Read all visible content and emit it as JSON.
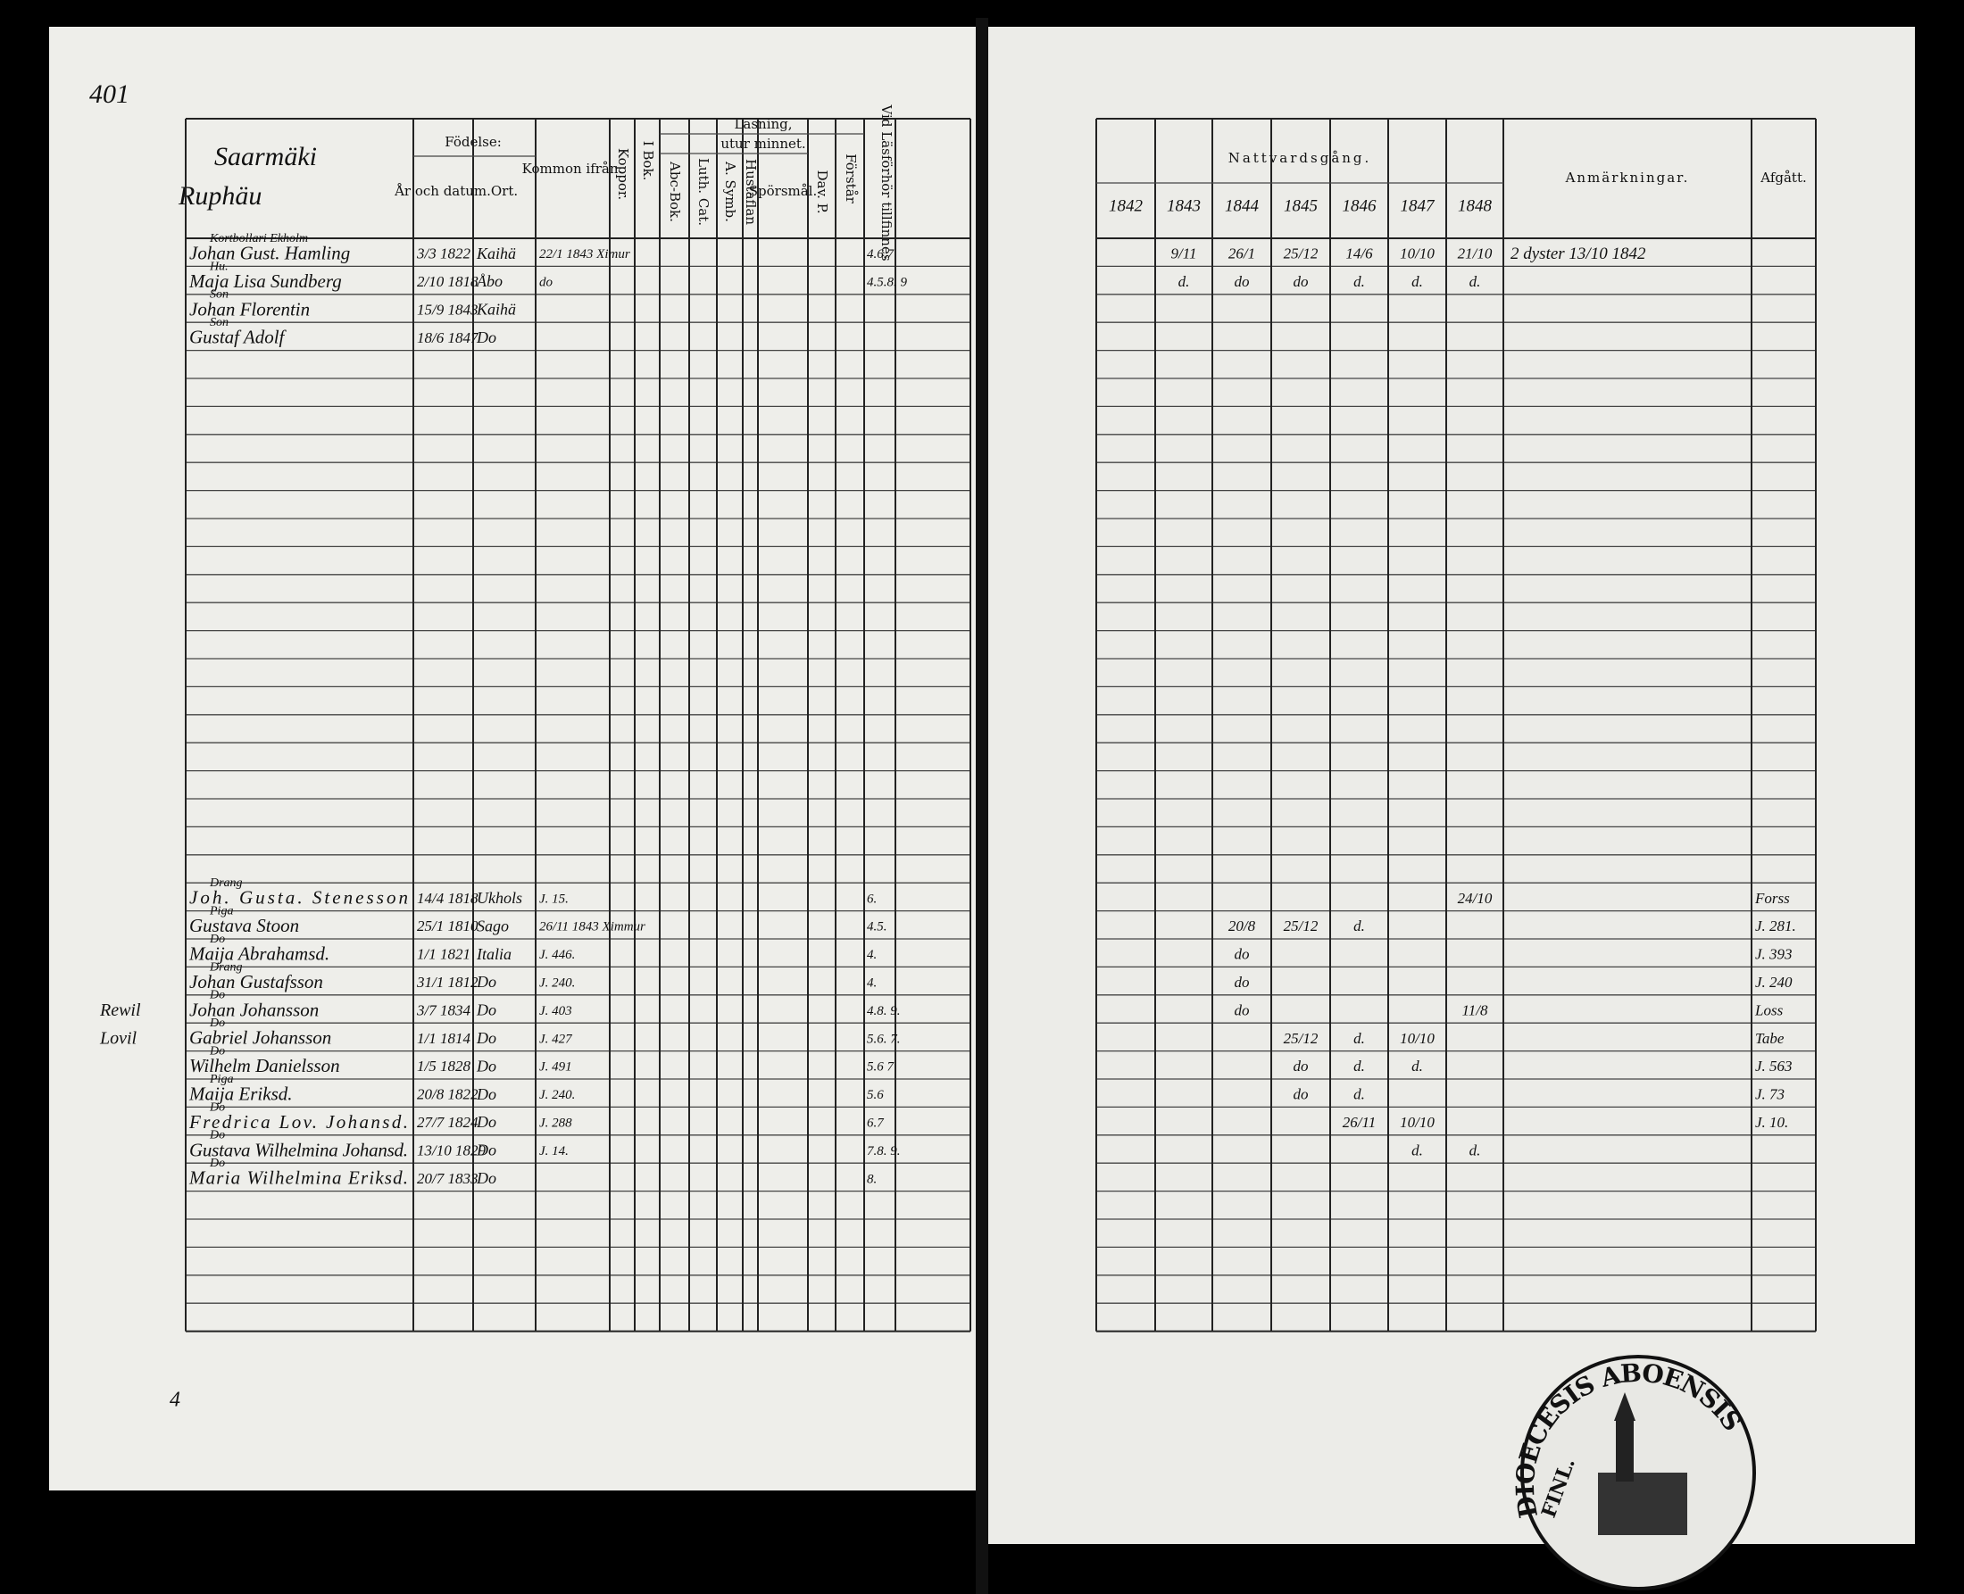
{
  "page_number": "401",
  "left": {
    "title": "Saarmäki",
    "subtitle": "Ruphäu",
    "headers": {
      "birth": "Födelse:",
      "date": "År och datum.",
      "place": "Ort.",
      "from": "Kommon ifrån.",
      "pox": "Koppor.",
      "book": "I Bok.",
      "reading": "Läsning,",
      "memory": "utur minnet.",
      "abc": "Abc-Bok.",
      "cat": "Luth. Cat.",
      "symb": "A. Symb.",
      "table": "Hustaflan",
      "questions": "Spörsmål.",
      "psalm": "Dav. P.",
      "understands": "Förstår",
      "exam": "Vid Läsförhör tillfinnes"
    },
    "upper": [
      {
        "role": "Kortbollari Ekholm",
        "name": "Johan Gust. Hamling",
        "date": "3/3 1822",
        "place": "Kaihä",
        "from": "22/1 1843 Ximur",
        "exam": "4.6.7"
      },
      {
        "role": "Hu.",
        "name": "Maja Lisa Sundberg",
        "date": "2/10 1818",
        "place": "Åbo",
        "from": "do",
        "exam": "4.5.8. 9"
      },
      {
        "role": "Son",
        "name": "Johan Florentin",
        "date": "15/9 1843",
        "place": "Kaihä"
      },
      {
        "role": "Son",
        "name": "Gustaf Adolf",
        "date": "18/6 1847",
        "place": "Do"
      }
    ],
    "lower": [
      {
        "role": "Drang",
        "name": "Joh. Gusta. Stenesson",
        "date": "14/4 1818",
        "place": "Ukhols",
        "from": "J. 15.",
        "exam": "6."
      },
      {
        "role": "Piga",
        "name": "Gustava Stoon",
        "date": "25/1 1810",
        "place": "Sago",
        "from": "26/11 1843 Ximmur",
        "exam": "4.5."
      },
      {
        "role": "Do",
        "name": "Maija Abrahamsd.",
        "date": "1/1 1821",
        "place": "Italia",
        "from": "J. 446.",
        "exam": "4."
      },
      {
        "role": "Drang",
        "name": "Johan Gustafsson",
        "date": "31/1 1812",
        "place": "Do",
        "from": "J. 240.",
        "exam": "4."
      },
      {
        "role": "Do",
        "name": "Johan Johansson",
        "date": "3/7 1834",
        "place": "Do",
        "from": "J. 403",
        "exam": "4.8. 9.",
        "margin": "Rewil"
      },
      {
        "role": "Do",
        "name": "Gabriel Johansson",
        "date": "1/1 1814",
        "place": "Do",
        "from": "J. 427",
        "exam": "5.6. 7.",
        "margin": "Lovil"
      },
      {
        "role": "Do",
        "name": "Wilhelm Danielsson",
        "date": "1/5 1828",
        "place": "Do",
        "from": "J. 491",
        "exam": "5.6 7"
      },
      {
        "role": "Piga",
        "name": "Maija Eriksd.",
        "date": "20/8 1822",
        "place": "Do",
        "from": "J. 240.",
        "exam": "5.6"
      },
      {
        "role": "Do",
        "name": "Fredrica Lov. Johansd.",
        "date": "27/7 1824",
        "place": "Do",
        "from": "J. 288",
        "exam": "6.7"
      },
      {
        "role": "Do",
        "name": "Gustava Wilhelmina Johansd.",
        "date": "13/10 1829",
        "place": "Do",
        "from": "J. 14.",
        "exam": "7.8. 9."
      },
      {
        "role": "Do",
        "name": "Maria Wilhelmina Eriksd.",
        "date": "20/7 1833",
        "place": "Do",
        "exam": "8."
      }
    ],
    "footer": "4"
  },
  "right": {
    "communion_title": "Nattvardsgång.",
    "years": [
      "1842",
      "1843",
      "1844",
      "1845",
      "1846",
      "1847",
      "1848"
    ],
    "remarks_title": "Anmärkningar.",
    "left_title": "Afgått.",
    "upper": [
      {
        "communion": {
          "1843": "9/11",
          "1844": "26/1",
          "1845": "25/12",
          "1846": "14/6",
          "1847": "10/10",
          "1848": "21/10"
        },
        "remarks": "2 dyster 13/10 1842"
      },
      {
        "communion": {
          "1843": "d.",
          "1844": "do",
          "1845": "do",
          "1846": "d.",
          "1847": "d.",
          "1848": "d."
        }
      }
    ],
    "lower": [
      {
        "communion": {
          "1848": "24/10"
        },
        "left": "Forss"
      },
      {
        "communion": {
          "1844": "20/8",
          "1845": "25/12",
          "1846": "d."
        },
        "left": "J. 281."
      },
      {
        "communion": {
          "1844": "do"
        },
        "left": "J. 393"
      },
      {
        "communion": {
          "1844": "do"
        },
        "left": "J. 240"
      },
      {
        "communion": {
          "1844": "do",
          "1848": "11/8"
        },
        "left": "Loss"
      },
      {
        "communion": {
          "1845": "25/12",
          "1846": "d.",
          "1847": "10/10"
        },
        "left": "Tabe"
      },
      {
        "communion": {
          "1845": "do",
          "1846": "d.",
          "1847": "d."
        },
        "left": "J. 563"
      },
      {
        "communion": {
          "1845": "do",
          "1846": "d."
        },
        "left": "J. 73"
      },
      {
        "communion": {
          "1846": "26/11",
          "1847": "10/10"
        },
        "left": "J. 10."
      },
      {
        "communion": {
          "1847": "d.",
          "1848": "d."
        }
      }
    ]
  },
  "stamp": {
    "outer": "DIOECESIS ABOENSIS",
    "inner": "FINL."
  }
}
